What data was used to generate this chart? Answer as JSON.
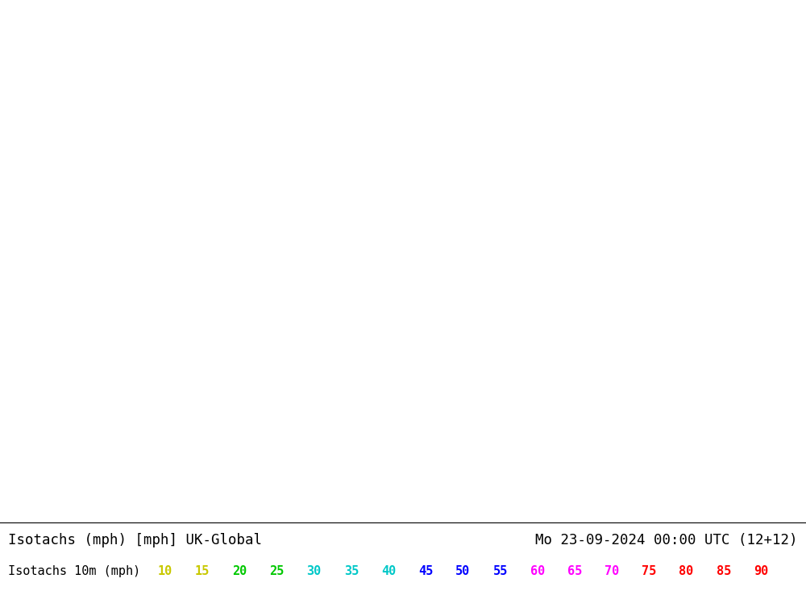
{
  "title_left": "Isotachs (mph) [mph] UK-Global",
  "title_right": "Mo 23-09-2024 00:00 UTC (12+12)",
  "legend_label": "Isotachs 10m (mph)",
  "legend_values": [
    "10",
    "15",
    "20",
    "25",
    "30",
    "35",
    "40",
    "45",
    "50",
    "55",
    "60",
    "65",
    "70",
    "75",
    "80",
    "85",
    "90"
  ],
  "legend_colors": [
    "#c8c800",
    "#c8c800",
    "#00c800",
    "#00c800",
    "#00c8c8",
    "#00c8c8",
    "#00c8c8",
    "#0000ff",
    "#0000ff",
    "#0000ff",
    "#ff00ff",
    "#ff00ff",
    "#ff00ff",
    "#ff0000",
    "#ff0000",
    "#ff0000",
    "#ff0000"
  ],
  "bg_color": "#ffffff",
  "land_color": "#c8c8a0",
  "sea_color": "#a0a0a8",
  "model_area_color": "#f0f0f0",
  "green_fill_color": "#c8f0c0",
  "text_color": "#000000",
  "border_color": "#808080",
  "title_fontsize": 12.5,
  "legend_fontsize": 11,
  "map_xlim": [
    -60,
    60
  ],
  "map_ylim": [
    20,
    80
  ]
}
